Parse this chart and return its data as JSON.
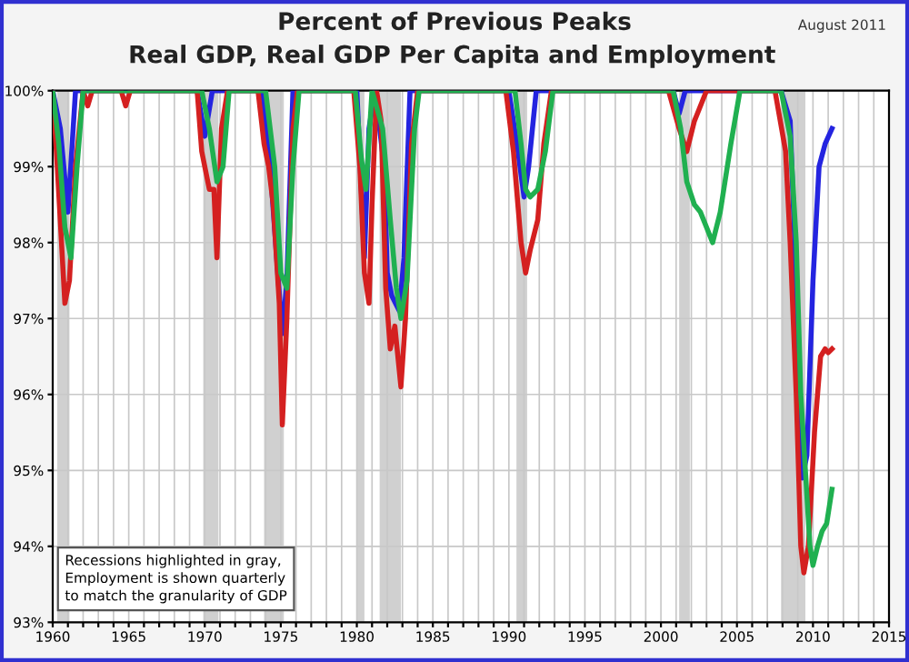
{
  "chart_data": {
    "type": "line",
    "title": "Percent of Previous Peaks",
    "subtitle": "Real GDP, Real GDP Per Capita and Employment",
    "annotations": [
      "August 2011",
      "Recessions highlighted in gray,\nEmployment is shown quarterly\nto match the granularity of GDP"
    ],
    "series": [
      {
        "color": "#2424e0",
        "x": [
          1960,
          1960.5,
          1961.0,
          1961.5,
          1969.5,
          1970.0,
          1970.5,
          1973.8,
          1974.3,
          1974.8,
          1975.1,
          1975.4,
          1975.8,
          1980.0,
          1980.5,
          1980.8,
          1981.2,
          1981.8,
          1982.0,
          1982.3,
          1982.8,
          1983.1,
          1983.5,
          1990.0,
          1990.6,
          1991.0,
          1991.3,
          1991.8,
          2000.8,
          2001.2,
          2001.6,
          2007.9,
          2008.5,
          2008.8,
          2009.0,
          2009.3,
          2009.6,
          2010.0,
          2010.4,
          2010.8,
          2011.25
        ],
        "values": [
          100,
          99.5,
          98.4,
          100,
          100,
          99.4,
          100,
          100,
          99.0,
          97.6,
          96.8,
          97.5,
          100,
          100,
          97.8,
          99.5,
          100,
          99.0,
          97.6,
          97.3,
          97.1,
          97.8,
          100,
          100,
          99.2,
          98.6,
          99.0,
          100,
          100,
          99.7,
          100,
          100,
          99.6,
          98.0,
          96.0,
          94.9,
          95.2,
          97.5,
          99.0,
          99.3,
          99.5
        ]
      },
      {
        "color": "#d42020",
        "x": [
          1960,
          1960.3,
          1960.8,
          1961.1,
          1961.5,
          1962.0,
          1962.3,
          1962.6,
          1964.5,
          1964.8,
          1965.1,
          1969.5,
          1969.8,
          1970.3,
          1970.6,
          1970.8,
          1971.1,
          1971.5,
          1973.5,
          1973.9,
          1974.2,
          1974.5,
          1974.9,
          1975.1,
          1975.4,
          1975.8,
          1976.1,
          1979.8,
          1980.2,
          1980.5,
          1980.8,
          1981.0,
          1981.3,
          1981.6,
          1981.9,
          1982.2,
          1982.5,
          1982.9,
          1983.2,
          1983.6,
          1984.0,
          1989.8,
          1990.3,
          1990.8,
          1991.1,
          1991.4,
          1991.9,
          1992.3,
          1992.8,
          2000.5,
          2001.2,
          2001.7,
          2002.2,
          2003.0,
          2007.5,
          2008.2,
          2008.5,
          2008.9,
          2009.2,
          2009.4,
          2009.7,
          2010.1,
          2010.5,
          2010.8,
          2011.0,
          2011.25
        ],
        "values": [
          100,
          99.0,
          97.2,
          97.5,
          99.0,
          100,
          99.8,
          100,
          100,
          99.8,
          100,
          100,
          99.2,
          98.7,
          98.7,
          97.8,
          99.5,
          100,
          100,
          99.3,
          99.0,
          98.5,
          97.2,
          95.6,
          97.0,
          99.5,
          100,
          100,
          99.0,
          97.6,
          97.2,
          98.5,
          100,
          99.6,
          97.4,
          96.6,
          96.9,
          96.1,
          97.0,
          99.3,
          100,
          100,
          99.2,
          98.0,
          97.6,
          97.9,
          98.3,
          99.3,
          100,
          100,
          99.5,
          99.2,
          99.6,
          100,
          100,
          99.2,
          98.0,
          96.0,
          94.0,
          93.65,
          94.0,
          95.5,
          96.5,
          96.6,
          96.55,
          96.6
        ]
      },
      {
        "color": "#20b050",
        "x": [
          1960,
          1960.4,
          1960.8,
          1961.2,
          1961.6,
          1962.0,
          1969.8,
          1970.3,
          1970.8,
          1971.2,
          1971.6,
          1974.0,
          1974.6,
          1975.0,
          1975.4,
          1975.8,
          1976.2,
          1979.9,
          1980.3,
          1980.6,
          1981.0,
          1981.7,
          1982.2,
          1982.6,
          1982.9,
          1983.3,
          1983.8,
          1984.1,
          1990.4,
          1990.8,
          1991.1,
          1991.4,
          1991.9,
          1992.4,
          1992.9,
          2000.8,
          2001.3,
          2001.7,
          2002.2,
          2002.6,
          2003.0,
          2003.4,
          2003.9,
          2004.6,
          2005.2,
          2007.9,
          2008.5,
          2008.9,
          2009.2,
          2009.5,
          2009.8,
          2010.0,
          2010.3,
          2010.6,
          2010.9,
          2011.25
        ],
        "values": [
          100,
          99.3,
          98.2,
          97.8,
          99.0,
          100,
          100,
          99.5,
          98.8,
          99.0,
          100,
          100,
          99.0,
          97.6,
          97.4,
          99.0,
          100,
          100,
          99.1,
          98.7,
          100,
          99.5,
          98.3,
          97.4,
          97.0,
          97.5,
          99.5,
          100,
          100,
          99.3,
          98.7,
          98.6,
          98.7,
          99.2,
          100,
          100,
          99.5,
          98.8,
          98.5,
          98.4,
          98.2,
          98.0,
          98.4,
          99.3,
          100,
          100,
          99.4,
          98.0,
          96.0,
          95.0,
          94.0,
          93.75,
          94.0,
          94.2,
          94.3,
          94.75
        ]
      }
    ],
    "bands": [
      {
        "axis": "x",
        "from": 1960.3,
        "to": 1961.1,
        "color": "#d0d0d0"
      },
      {
        "axis": "x",
        "from": 1969.9,
        "to": 1970.9,
        "color": "#d0d0d0"
      },
      {
        "axis": "x",
        "from": 1973.9,
        "to": 1975.2,
        "color": "#d0d0d0"
      },
      {
        "axis": "x",
        "from": 1980.0,
        "to": 1980.5,
        "color": "#d0d0d0"
      },
      {
        "axis": "x",
        "from": 1981.5,
        "to": 1982.9,
        "color": "#d0d0d0"
      },
      {
        "axis": "x",
        "from": 1990.5,
        "to": 1991.2,
        "color": "#d0d0d0"
      },
      {
        "axis": "x",
        "from": 2001.2,
        "to": 2001.9,
        "color": "#d0d0d0"
      },
      {
        "axis": "x",
        "from": 2007.9,
        "to": 2009.5,
        "color": "#d0d0d0"
      }
    ],
    "xlim": [
      1960,
      2015
    ],
    "xticks": [
      1960,
      {
        "value": 1961,
        "label": null
      },
      {
        "value": 1962,
        "label": null
      },
      {
        "value": 1963,
        "label": null
      },
      {
        "value": 1964,
        "label": null
      },
      1965,
      {
        "value": 1966,
        "label": null
      },
      {
        "value": 1967,
        "label": null
      },
      {
        "value": 1968,
        "label": null
      },
      {
        "value": 1969,
        "label": null
      },
      1970,
      {
        "value": 1971,
        "label": null
      },
      {
        "value": 1972,
        "label": null
      },
      {
        "value": 1973,
        "label": null
      },
      {
        "value": 1974,
        "label": null
      },
      1975,
      {
        "value": 1976,
        "label": null
      },
      {
        "value": 1977,
        "label": null
      },
      {
        "value": 1978,
        "label": null
      },
      {
        "value": 1979,
        "label": null
      },
      1980,
      {
        "value": 1981,
        "label": null
      },
      {
        "value": 1982,
        "label": null
      },
      {
        "value": 1983,
        "label": null
      },
      {
        "value": 1984,
        "label": null
      },
      1985,
      {
        "value": 1986,
        "label": null
      },
      {
        "value": 1987,
        "label": null
      },
      {
        "value": 1988,
        "label": null
      },
      {
        "value": 1989,
        "label": null
      },
      1990,
      {
        "value": 1991,
        "label": null
      },
      {
        "value": 1992,
        "label": null
      },
      {
        "value": 1993,
        "label": null
      },
      {
        "value": 1994,
        "label": null
      },
      1995,
      {
        "value": 1996,
        "label": null
      },
      {
        "value": 1997,
        "label": null
      },
      {
        "value": 1998,
        "label": null
      },
      {
        "value": 1999,
        "label": null
      },
      2000,
      {
        "value": 2001,
        "label": null
      },
      {
        "value": 2002,
        "label": null
      },
      {
        "value": 2003,
        "label": null
      },
      {
        "value": 2004,
        "label": null
      },
      2005,
      {
        "value": 2006,
        "label": null
      },
      {
        "value": 2007,
        "label": null
      },
      {
        "value": 2008,
        "label": null
      },
      {
        "value": 2009,
        "label": null
      },
      2010,
      {
        "value": 2011,
        "label": null
      },
      {
        "value": 2012,
        "label": null
      },
      {
        "value": 2013,
        "label": null
      },
      {
        "value": 2014,
        "label": null
      },
      2015
    ],
    "ylim": [
      93,
      100
    ],
    "yticks": [
      {
        "value": 93,
        "label": "93%"
      },
      {
        "value": 94,
        "label": "94%"
      },
      {
        "value": 95,
        "label": "95%"
      },
      {
        "value": 96,
        "label": "96%"
      },
      {
        "value": 97,
        "label": "97%"
      },
      {
        "value": 98,
        "label": "98%"
      },
      {
        "value": 99,
        "label": "99%"
      },
      {
        "value": 100,
        "label": "100%"
      }
    ],
    "grid": true,
    "legend": false,
    "marker": "none",
    "line_style": "solid"
  }
}
